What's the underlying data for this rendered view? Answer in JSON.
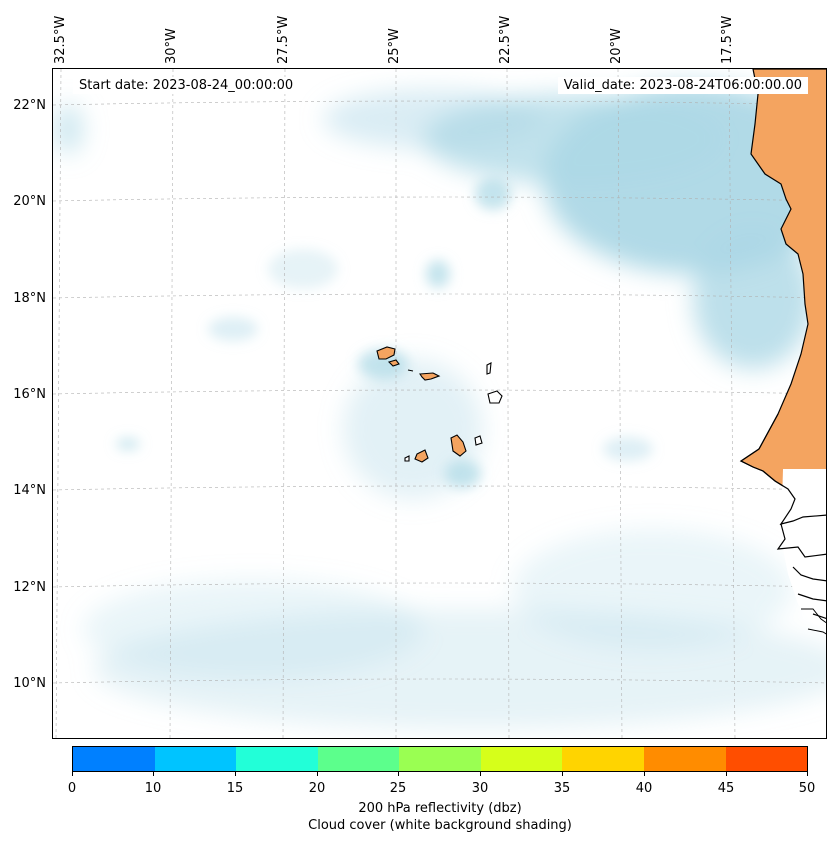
{
  "longitude_labels": [
    "32.5°W",
    "30°W",
    "27.5°W",
    "25°W",
    "22.5°W",
    "20°W",
    "17.5°W"
  ],
  "latitude_labels": [
    "22°N",
    "20°N",
    "18°N",
    "16°N",
    "14°N",
    "12°N",
    "10°N"
  ],
  "start_date": "Start date: 2023-08-24_00:00:00",
  "valid_date": "Valid_date: 2023-08-24T06:00:00.00",
  "colorbar": {
    "colors": [
      "#0080ff",
      "#00c4ff",
      "#22ffd8",
      "#5cff8c",
      "#9aff52",
      "#d6ff1a",
      "#ffd400",
      "#ff8c00",
      "#ff4e00"
    ],
    "ticks": [
      "0",
      "10",
      "15",
      "20",
      "25",
      "30",
      "35",
      "40",
      "45",
      "50"
    ],
    "label": "200 hPa reflectivity (dbz)",
    "sublabel": "Cloud cover (white background shading)"
  },
  "map_colors": {
    "land": "#f4a460",
    "cloud": "#add8e6",
    "grid": "#b0b0b0"
  }
}
